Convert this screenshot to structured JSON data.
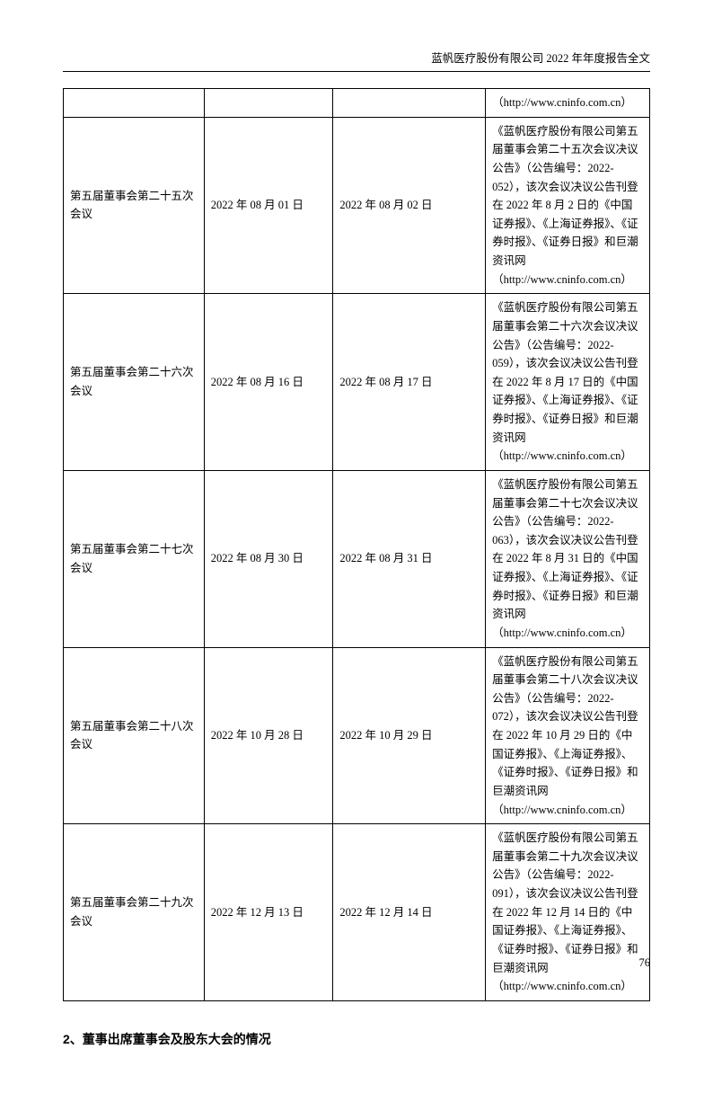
{
  "header_text": "蓝帆医疗股份有限公司 2022 年年度报告全文",
  "page_number": "76",
  "section_heading": "2、董事出席董事会及股东大会的情况",
  "rows": [
    {
      "meeting": "",
      "date1": "",
      "date2": "",
      "desc": "（http://www.cninfo.com.cn）"
    },
    {
      "meeting": "第五届董事会第二十五次会议",
      "date1": "2022 年 08 月 01 日",
      "date2": "2022 年 08 月 02 日",
      "desc": "《蓝帆医疗股份有限公司第五届董事会第二十五次会议决议公告》（公告编号：2022-052），该次会议决议公告刊登在 2022 年 8 月 2 日的《中国证券报》、《上海证券报》、《证券时报》、《证券日报》和巨潮资讯网（http://www.cninfo.com.cn）"
    },
    {
      "meeting": "第五届董事会第二十六次会议",
      "date1": "2022 年 08 月 16 日",
      "date2": "2022 年 08 月 17 日",
      "desc": "《蓝帆医疗股份有限公司第五届董事会第二十六次会议决议公告》（公告编号：2022-059），该次会议决议公告刊登在 2022 年 8 月 17 日的《中国证券报》、《上海证券报》、《证券时报》、《证券日报》和巨潮资讯网（http://www.cninfo.com.cn）"
    },
    {
      "meeting": "第五届董事会第二十七次会议",
      "date1": "2022 年 08 月 30 日",
      "date2": "2022 年 08 月 31 日",
      "desc": "《蓝帆医疗股份有限公司第五届董事会第二十七次会议决议公告》（公告编号：2022-063），该次会议决议公告刊登在 2022 年 8 月 31 日的《中国证券报》、《上海证券报》、《证券时报》、《证券日报》和巨潮资讯网（http://www.cninfo.com.cn）"
    },
    {
      "meeting": "第五届董事会第二十八次会议",
      "date1": "2022 年 10 月 28 日",
      "date2": "2022 年 10 月 29 日",
      "desc": "《蓝帆医疗股份有限公司第五届董事会第二十八次会议决议公告》（公告编号：2022-072），该次会议决议公告刊登在 2022 年 10 月 29 日的《中国证券报》、《上海证券报》、《证券时报》、《证券日报》和巨潮资讯网（http://www.cninfo.com.cn）"
    },
    {
      "meeting": "第五届董事会第二十九次会议",
      "date1": "2022 年 12 月 13 日",
      "date2": "2022 年 12 月 14 日",
      "desc": "《蓝帆医疗股份有限公司第五届董事会第二十九次会议决议公告》（公告编号：2022-091），该次会议决议公告刊登在 2022 年 12 月 14 日的《中国证券报》、《上海证券报》、《证券时报》、《证券日报》和巨潮资讯网（http://www.cninfo.com.cn）"
    }
  ]
}
